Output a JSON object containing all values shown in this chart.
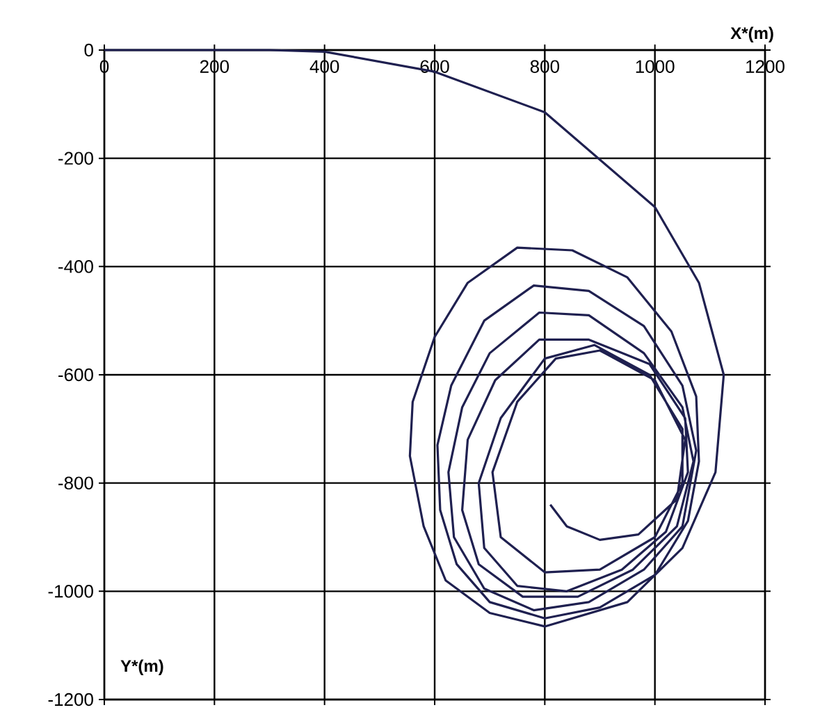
{
  "chart_data": {
    "type": "line",
    "xlabel": "X*(m)",
    "ylabel": "Y*(m)",
    "xlim": [
      0,
      1200
    ],
    "xticks": [
      0,
      200,
      400,
      600,
      800,
      1000,
      1200
    ],
    "ylim": [
      -1200,
      0
    ],
    "yticks": [
      0,
      -200,
      -400,
      -600,
      -800,
      -1000,
      -1200
    ],
    "grid": true,
    "series": [
      {
        "color": "#1f2050",
        "x": [
          0,
          300,
          400,
          600,
          800,
          1000,
          1080,
          1125,
          1110,
          1050,
          950,
          800,
          700,
          620,
          580,
          555,
          560,
          600,
          660,
          750,
          850,
          950,
          1030,
          1075,
          1080,
          1060,
          1000,
          900,
          800,
          700,
          640,
          610,
          605,
          630,
          690,
          780,
          880,
          980,
          1050,
          1075,
          1050,
          980,
          880,
          780,
          690,
          635,
          625,
          650,
          700,
          790,
          880,
          980,
          1050,
          1070,
          1040,
          960,
          860,
          760,
          680,
          650,
          660,
          710,
          790,
          880,
          990,
          1055,
          1060,
          1020,
          940,
          840,
          750,
          690,
          680,
          720,
          800,
          890,
          990,
          1050,
          1050,
          1000,
          900,
          800,
          720,
          705,
          750,
          820,
          900,
          1000,
          1055,
          1040,
          970,
          900,
          840,
          810
        ],
        "values": [
          0,
          0,
          -3,
          -40,
          -115,
          -290,
          -430,
          -600,
          -780,
          -920,
          -1020,
          -1065,
          -1040,
          -980,
          -880,
          -750,
          -650,
          -530,
          -430,
          -365,
          -370,
          -420,
          -520,
          -640,
          -760,
          -870,
          -970,
          -1030,
          -1050,
          -1020,
          -950,
          -850,
          -730,
          -620,
          -500,
          -435,
          -445,
          -510,
          -620,
          -740,
          -880,
          -960,
          -1020,
          -1035,
          -995,
          -900,
          -780,
          -660,
          -560,
          -485,
          -490,
          -560,
          -660,
          -760,
          -880,
          -960,
          -1010,
          -1010,
          -950,
          -850,
          -720,
          -610,
          -535,
          -535,
          -580,
          -680,
          -780,
          -890,
          -960,
          -1000,
          -990,
          -920,
          -800,
          -680,
          -570,
          -545,
          -600,
          -700,
          -800,
          -900,
          -960,
          -965,
          -900,
          -780,
          -650,
          -570,
          -555,
          -610,
          -720,
          -830,
          -895,
          -905,
          -880,
          -840
        ]
      }
    ]
  }
}
